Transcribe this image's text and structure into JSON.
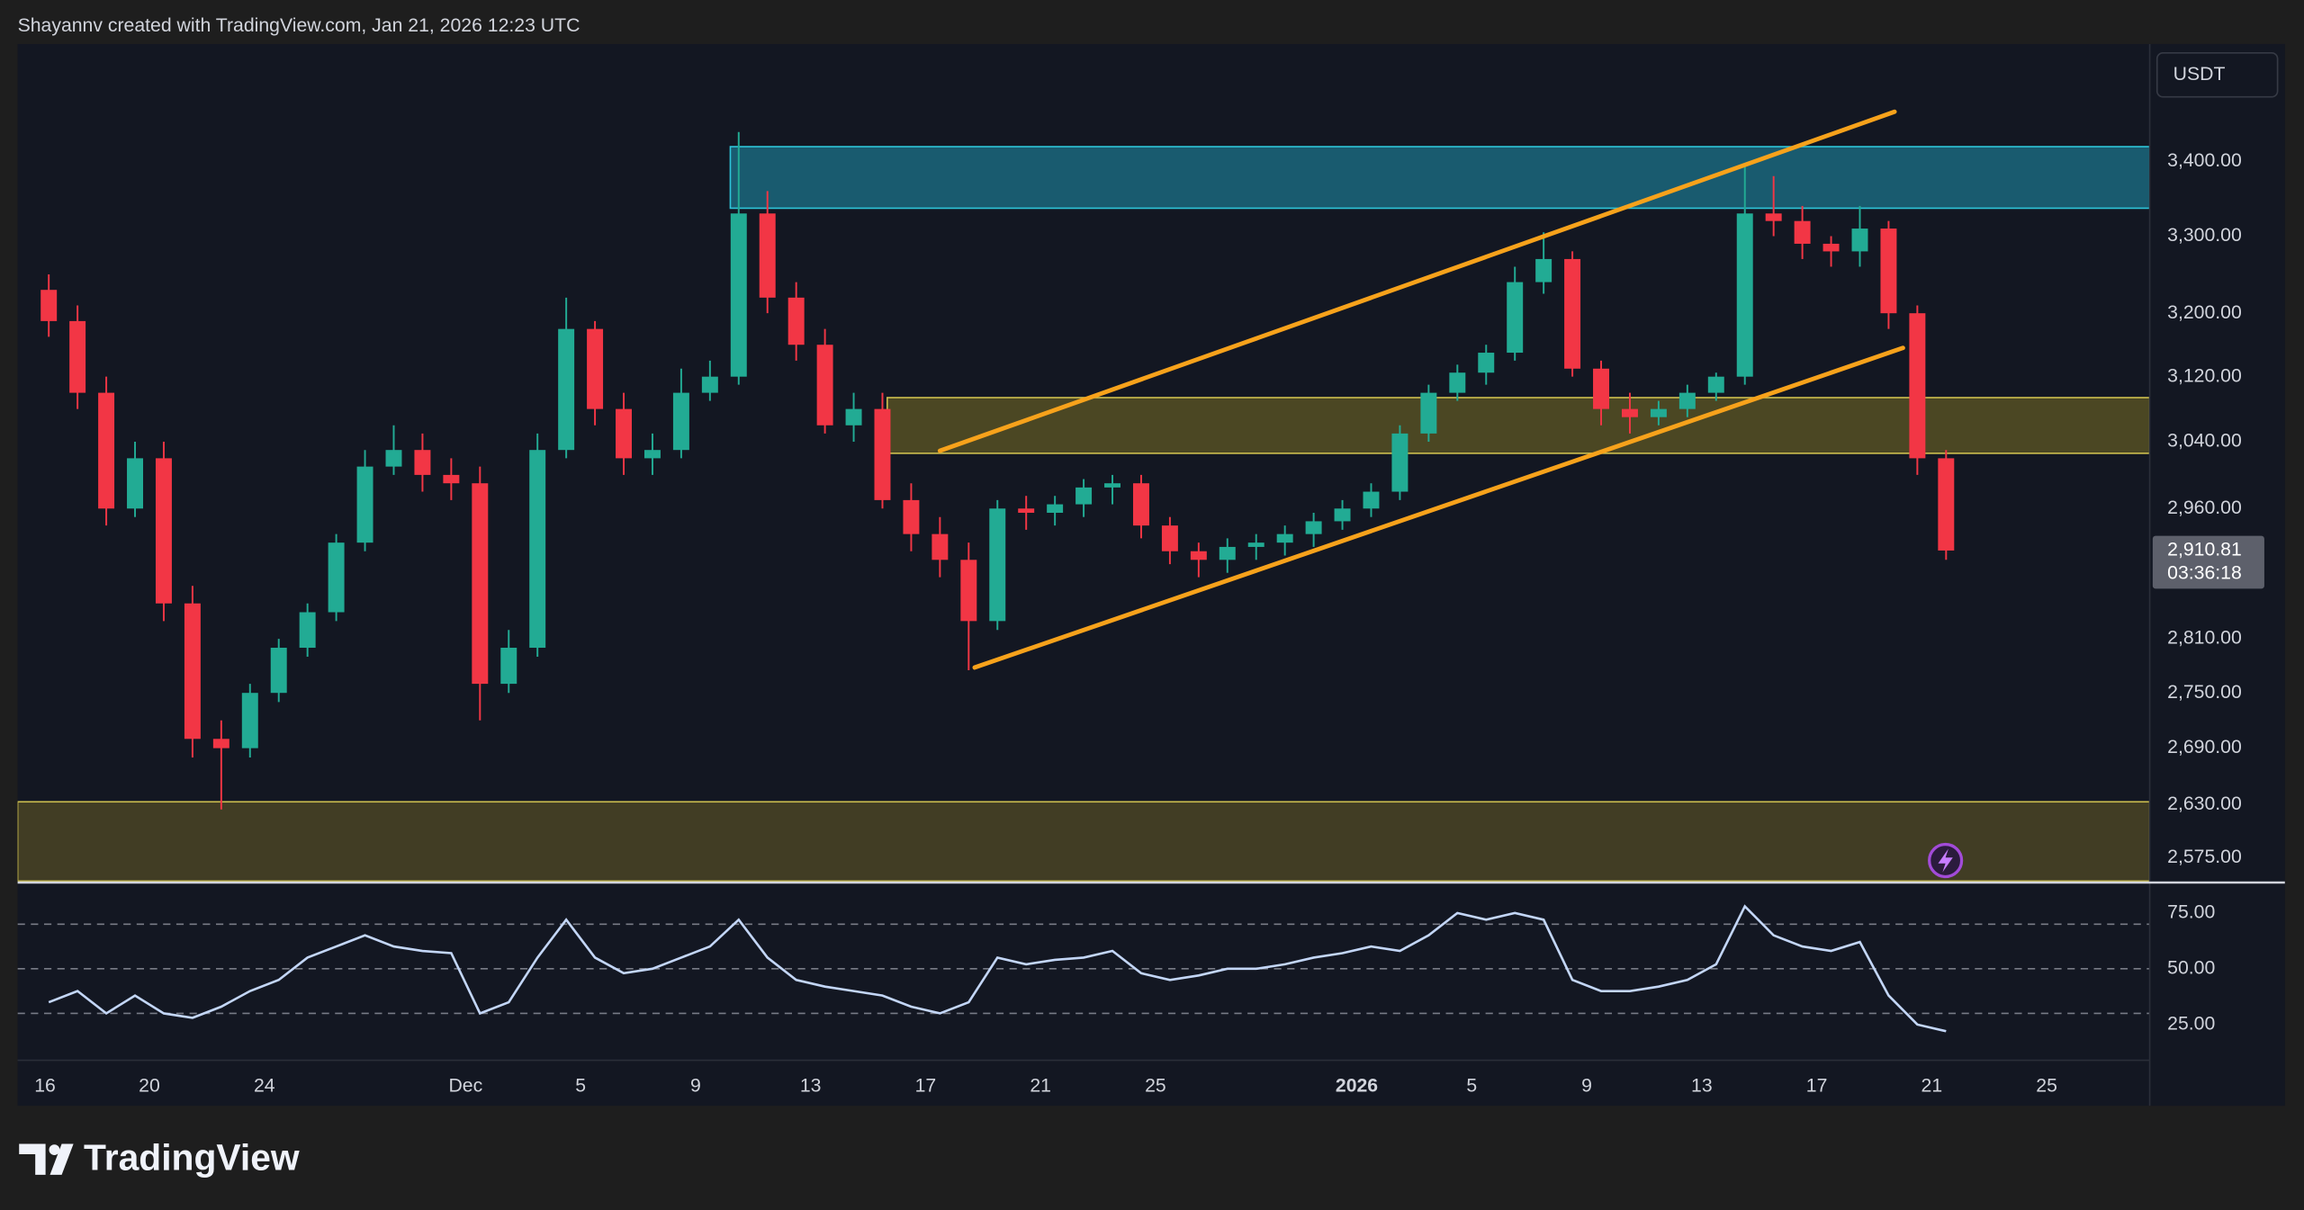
{
  "header": "Shayannv created with TradingView.com, Jan 21, 2026 12:23 UTC",
  "brand": "TradingView",
  "chart_data": [
    {
      "type": "candlestick",
      "currency": "USDT",
      "log": true,
      "grid": false,
      "up_color": "#22ab94",
      "down_color": "#f23645",
      "x": [
        "2025-11-16",
        "2025-11-17",
        "2025-11-18",
        "2025-11-19",
        "2025-11-20",
        "2025-11-21",
        "2025-11-22",
        "2025-11-23",
        "2025-11-24",
        "2025-11-25",
        "2025-11-26",
        "2025-11-27",
        "2025-11-28",
        "2025-11-29",
        "2025-11-30",
        "2025-12-01",
        "2025-12-02",
        "2025-12-03",
        "2025-12-04",
        "2025-12-05",
        "2025-12-06",
        "2025-12-07",
        "2025-12-08",
        "2025-12-09",
        "2025-12-10",
        "2025-12-11",
        "2025-12-12",
        "2025-12-13",
        "2025-12-14",
        "2025-12-15",
        "2025-12-16",
        "2025-12-17",
        "2025-12-18",
        "2025-12-19",
        "2025-12-20",
        "2025-12-21",
        "2025-12-22",
        "2025-12-23",
        "2025-12-24",
        "2025-12-25",
        "2025-12-26",
        "2025-12-27",
        "2025-12-28",
        "2025-12-29",
        "2025-12-30",
        "2025-12-31",
        "2026-01-01",
        "2026-01-02",
        "2026-01-03",
        "2026-01-04",
        "2026-01-05",
        "2026-01-06",
        "2026-01-07",
        "2026-01-08",
        "2026-01-09",
        "2026-01-10",
        "2026-01-11",
        "2026-01-12",
        "2026-01-13",
        "2026-01-14",
        "2026-01-15",
        "2026-01-16",
        "2026-01-17",
        "2026-01-18",
        "2026-01-19",
        "2026-01-20",
        "2026-01-21"
      ],
      "open": [
        3230,
        3190,
        3100,
        2960,
        3020,
        2850,
        2700,
        2690,
        2750,
        2800,
        2840,
        2920,
        3010,
        3030,
        3000,
        2990,
        2760,
        2800,
        3030,
        3180,
        3080,
        3020,
        3030,
        3100,
        3120,
        3330,
        3220,
        3160,
        3060,
        3080,
        2970,
        2930,
        2900,
        2830,
        2960,
        2955,
        2965,
        2985,
        2990,
        2940,
        2910,
        2900,
        2915,
        2920,
        2930,
        2945,
        2960,
        2980,
        3050,
        3100,
        3125,
        3150,
        3240,
        3270,
        3130,
        3080,
        3070,
        3080,
        3100,
        3120,
        3330,
        3320,
        3290,
        3280,
        3310,
        3200,
        3020
      ],
      "high": [
        3250,
        3210,
        3120,
        3040,
        3040,
        2870,
        2720,
        2760,
        2810,
        2850,
        2930,
        3030,
        3060,
        3050,
        3020,
        3010,
        2820,
        3050,
        3220,
        3190,
        3100,
        3050,
        3130,
        3140,
        3440,
        3360,
        3240,
        3180,
        3100,
        3100,
        2990,
        2950,
        2920,
        2970,
        2975,
        2975,
        2995,
        3000,
        3000,
        2950,
        2920,
        2925,
        2930,
        2940,
        2955,
        2970,
        2990,
        3060,
        3110,
        3135,
        3160,
        3260,
        3305,
        3280,
        3140,
        3100,
        3090,
        3110,
        3125,
        3395,
        3380,
        3340,
        3300,
        3340,
        3320,
        3210,
        3030
      ],
      "low": [
        3170,
        3080,
        2940,
        2950,
        2830,
        2680,
        2625,
        2680,
        2740,
        2790,
        2830,
        2910,
        3000,
        2980,
        2970,
        2720,
        2750,
        2790,
        3020,
        3060,
        3000,
        3000,
        3020,
        3090,
        3110,
        3200,
        3140,
        3050,
        3040,
        2960,
        2910,
        2880,
        2775,
        2820,
        2935,
        2940,
        2950,
        2965,
        2925,
        2895,
        2880,
        2885,
        2900,
        2905,
        2915,
        2935,
        2950,
        2970,
        3040,
        3090,
        3110,
        3140,
        3225,
        3120,
        3060,
        3050,
        3060,
        3070,
        3090,
        3110,
        3300,
        3270,
        3260,
        3260,
        3180,
        3000,
        2900
      ],
      "close": [
        3190,
        3100,
        2960,
        3020,
        2850,
        2700,
        2690,
        2750,
        2800,
        2840,
        2920,
        3010,
        3030,
        3000,
        2990,
        2760,
        2800,
        3030,
        3180,
        3080,
        3020,
        3030,
        3100,
        3120,
        3330,
        3220,
        3160,
        3060,
        3080,
        2970,
        2930,
        2900,
        2830,
        2960,
        2955,
        2965,
        2985,
        2990,
        2940,
        2910,
        2900,
        2915,
        2920,
        2930,
        2945,
        2960,
        2980,
        3050,
        3100,
        3125,
        3150,
        3240,
        3270,
        3130,
        3080,
        3070,
        3080,
        3100,
        3120,
        3330,
        3320,
        3290,
        3280,
        3310,
        3200,
        3020,
        2910.81
      ],
      "xlim": [
        "2025-11-15T10:00Z",
        "2026-01-28T14:00Z"
      ],
      "xticks": [
        {
          "value": "2025-11-16",
          "label": "16"
        },
        {
          "value": "2025-11-20",
          "label": "20"
        },
        {
          "value": "2025-11-24",
          "label": "24"
        },
        {
          "value": "2025-12-01",
          "label": "Dec"
        },
        {
          "value": "2025-12-05",
          "label": "5"
        },
        {
          "value": "2025-12-09",
          "label": "9"
        },
        {
          "value": "2025-12-13",
          "label": "13"
        },
        {
          "value": "2025-12-17",
          "label": "17"
        },
        {
          "value": "2025-12-21",
          "label": "21"
        },
        {
          "value": "2025-12-25",
          "label": "25"
        },
        {
          "value": "2026-01-01",
          "label": "2026"
        },
        {
          "value": "2026-01-05",
          "label": "5"
        },
        {
          "value": "2026-01-09",
          "label": "9"
        },
        {
          "value": "2026-01-13",
          "label": "13"
        },
        {
          "value": "2026-01-17",
          "label": "17"
        },
        {
          "value": "2026-01-21",
          "label": "21"
        },
        {
          "value": "2026-01-25",
          "label": "25"
        }
      ],
      "ylim": [
        2551,
        3563
      ],
      "yticks": [
        {
          "value": 3400,
          "label": "3,400.00"
        },
        {
          "value": 3300,
          "label": "3,300.00"
        },
        {
          "value": 3200,
          "label": "3,200.00"
        },
        {
          "value": 3120,
          "label": "3,120.00"
        },
        {
          "value": 3040,
          "label": "3,040.00"
        },
        {
          "value": 2960,
          "label": "2,960.00"
        },
        {
          "value": 2810,
          "label": "2,810.00"
        },
        {
          "value": 2750,
          "label": "2,750.00"
        },
        {
          "value": 2690,
          "label": "2,690.00"
        },
        {
          "value": 2630,
          "label": "2,630.00"
        },
        {
          "value": 2575,
          "label": "2,575.00"
        }
      ],
      "zones": [
        {
          "from": 3337,
          "to": 3420,
          "x_start": "2025-12-10T05:00Z",
          "color": "#1b6d83",
          "border": "#2ec4d8"
        },
        {
          "from": 3026,
          "to": 3094,
          "x_start": "2025-12-15T16:00Z",
          "color": "#5a5424",
          "border": "#cbbd4e"
        },
        {
          "from": 2551,
          "to": 2633,
          "color": "#4d4726",
          "border": "#cbbd4e"
        }
      ],
      "channel": [
        {
          "color": "#f7a21b",
          "points": [
            [
              "2025-12-17T12:00Z",
              3029
            ],
            [
              "2026-01-19T17:00Z",
              3468
            ]
          ]
        },
        {
          "color": "#f7a21b",
          "points": [
            [
              "2025-12-18T17:00Z",
              2778
            ],
            [
              "2026-01-20T00:00Z",
              3156
            ]
          ]
        }
      ],
      "last_price": {
        "value": 2910.81,
        "label": "2,910.81"
      },
      "countdown": "03:36:18"
    },
    {
      "type": "line",
      "color": "#c3d6f7",
      "x": [
        "2025-11-16",
        "2025-11-17",
        "2025-11-18",
        "2025-11-19",
        "2025-11-20",
        "2025-11-21",
        "2025-11-22",
        "2025-11-23",
        "2025-11-24",
        "2025-11-25",
        "2025-11-26",
        "2025-11-27",
        "2025-11-28",
        "2025-11-29",
        "2025-11-30",
        "2025-12-01",
        "2025-12-02",
        "2025-12-03",
        "2025-12-04",
        "2025-12-05",
        "2025-12-06",
        "2025-12-07",
        "2025-12-08",
        "2025-12-09",
        "2025-12-10",
        "2025-12-11",
        "2025-12-12",
        "2025-12-13",
        "2025-12-14",
        "2025-12-15",
        "2025-12-16",
        "2025-12-17",
        "2025-12-18",
        "2025-12-19",
        "2025-12-20",
        "2025-12-21",
        "2025-12-22",
        "2025-12-23",
        "2025-12-24",
        "2025-12-25",
        "2025-12-26",
        "2025-12-27",
        "2025-12-28",
        "2025-12-29",
        "2025-12-30",
        "2025-12-31",
        "2026-01-01",
        "2026-01-02",
        "2026-01-03",
        "2026-01-04",
        "2026-01-05",
        "2026-01-06",
        "2026-01-07",
        "2026-01-08",
        "2026-01-09",
        "2026-01-10",
        "2026-01-11",
        "2026-01-12",
        "2026-01-13",
        "2026-01-14",
        "2026-01-15",
        "2026-01-16",
        "2026-01-17",
        "2026-01-18",
        "2026-01-19",
        "2026-01-20",
        "2026-01-21"
      ],
      "values": [
        35,
        40,
        30,
        38,
        30,
        28,
        33,
        40,
        45,
        55,
        60,
        65,
        60,
        58,
        57,
        30,
        35,
        55,
        72,
        55,
        48,
        50,
        55,
        60,
        72,
        55,
        45,
        42,
        40,
        38,
        33,
        30,
        35,
        55,
        52,
        54,
        55,
        58,
        48,
        45,
        47,
        50,
        50,
        52,
        55,
        57,
        60,
        58,
        65,
        75,
        72,
        75,
        72,
        45,
        40,
        40,
        42,
        45,
        52,
        78,
        65,
        60,
        58,
        62,
        38,
        25,
        22
      ],
      "ylim": [
        9,
        88
      ],
      "yticks": [
        {
          "value": 75,
          "label": "75.00"
        },
        {
          "value": 50,
          "label": "50.00"
        },
        {
          "value": 25,
          "label": "25.00"
        }
      ],
      "levels": [
        70,
        50,
        30
      ]
    }
  ]
}
